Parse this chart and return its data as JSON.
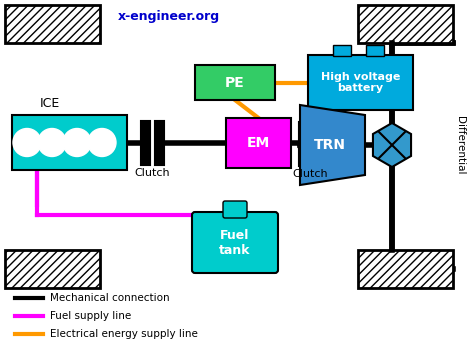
{
  "title": "x-engineer.org",
  "title_color": "#0000cc",
  "bg_color": "#ffffff",
  "ice_color": "#00cccc",
  "em_color": "#ff00ff",
  "pe_color": "#33cc66",
  "hvb_color": "#00aadd",
  "trn_color": "#3388cc",
  "diff_color": "#3399cc",
  "ft_color": "#00cccc",
  "wheel_hatch": "////",
  "mech_lw": 4,
  "fuel_lw": 2,
  "elec_lw": 2,
  "fuel_color": "#ff00ff",
  "elec_color": "#ff9900",
  "legend": [
    {
      "color": "#000000",
      "label": "Mechanical connection"
    },
    {
      "color": "#ff00ff",
      "label": "Fuel supply line"
    },
    {
      "color": "#ff9900",
      "label": "Electrical energy supply line"
    }
  ]
}
